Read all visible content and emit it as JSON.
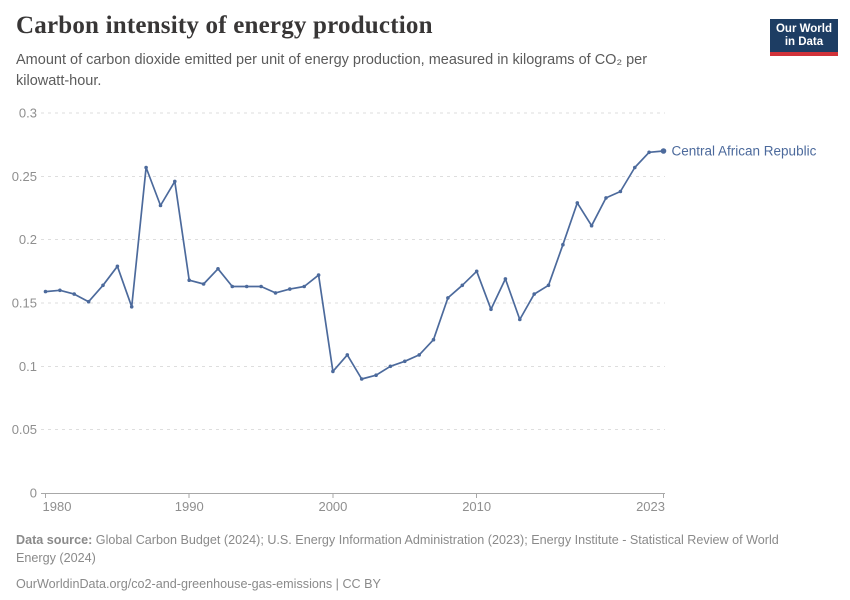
{
  "chart_data": {
    "type": "line",
    "title": "Carbon intensity of energy production",
    "subtitle": "Amount of carbon dioxide emitted per unit of energy production, measured in kilograms of CO₂ per kilowatt-hour.",
    "xlabel": "",
    "ylabel": "",
    "xlim": [
      1980,
      2023
    ],
    "ylim": [
      0,
      0.3
    ],
    "x_ticks": [
      1980,
      1990,
      2000,
      2010,
      2023
    ],
    "y_ticks": [
      0,
      0.05,
      0.1,
      0.15,
      0.2,
      0.25,
      0.3
    ],
    "grid": "horizontal dashed",
    "legend": "direct label at line end",
    "series": [
      {
        "name": "Central African Republic",
        "color": "#4c6a9c",
        "x": [
          1980,
          1981,
          1982,
          1983,
          1984,
          1985,
          1986,
          1987,
          1988,
          1989,
          1990,
          1991,
          1992,
          1993,
          1994,
          1995,
          1996,
          1997,
          1998,
          1999,
          2000,
          2001,
          2002,
          2003,
          2004,
          2005,
          2006,
          2007,
          2008,
          2009,
          2010,
          2011,
          2012,
          2013,
          2014,
          2015,
          2016,
          2017,
          2018,
          2019,
          2020,
          2021,
          2022,
          2023
        ],
        "values": [
          0.159,
          0.16,
          0.157,
          0.151,
          0.164,
          0.179,
          0.147,
          0.257,
          0.227,
          0.246,
          0.168,
          0.165,
          0.177,
          0.163,
          0.163,
          0.163,
          0.158,
          0.161,
          0.163,
          0.172,
          0.096,
          0.109,
          0.09,
          0.093,
          0.1,
          0.104,
          0.109,
          0.121,
          0.154,
          0.164,
          0.175,
          0.145,
          0.169,
          0.137,
          0.157,
          0.164,
          0.196,
          0.229,
          0.211,
          0.233,
          0.238,
          0.257,
          0.269,
          0.27
        ]
      }
    ],
    "style": {
      "line_color": "#4c6a9c",
      "entity_label_color": "#4c6a9c",
      "grid_color": "#dedede",
      "axis_color": "#a8a8a8",
      "tick_label_color": "#8f8f8f"
    }
  },
  "header": {
    "logo_line1": "Our World",
    "logo_line2": "in Data",
    "logo_bg": "#1d3d63",
    "logo_accent": "#d13239"
  },
  "footer": {
    "source_label": "Data source:",
    "source_text": " Global Carbon Budget (2024); U.S. Energy Information Administration (2023); Energy Institute - Statistical Review of World Energy (2024)",
    "link_url": "OurWorldinData.org/co2-and-greenhouse-gas-emissions",
    "separator": " | ",
    "license": "CC BY"
  }
}
